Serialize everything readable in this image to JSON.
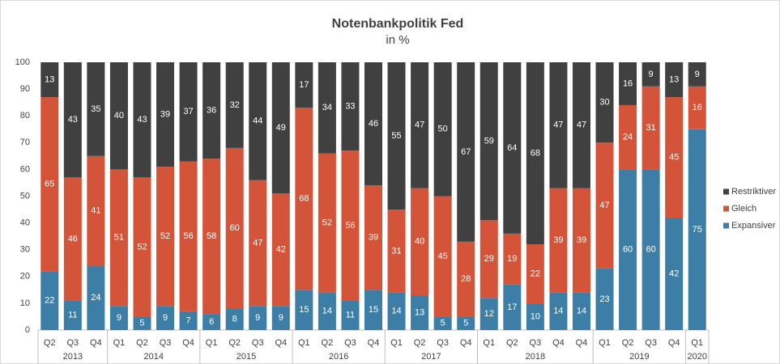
{
  "chart_data": {
    "type": "stacked_bar",
    "title": "Notenbankpolitik Fed",
    "subtitle": "in %",
    "groups": [
      {
        "label": "2013",
        "categories": [
          "Q2",
          "Q3",
          "Q4"
        ]
      },
      {
        "label": "2014",
        "categories": [
          "Q1",
          "Q2",
          "Q3",
          "Q4"
        ]
      },
      {
        "label": "2015",
        "categories": [
          "Q1",
          "Q2",
          "Q3",
          "Q4"
        ]
      },
      {
        "label": "2016",
        "categories": [
          "Q1",
          "Q2",
          "Q3",
          "Q4"
        ]
      },
      {
        "label": "2017",
        "categories": [
          "Q1",
          "Q2",
          "Q3",
          "Q4"
        ]
      },
      {
        "label": "2018",
        "categories": [
          "Q1",
          "Q2",
          "Q3",
          "Q4",
          "Q4"
        ]
      },
      {
        "label": "2019",
        "categories": [
          "Q1",
          "Q2",
          "Q3",
          "Q4"
        ]
      },
      {
        "label": "2020",
        "categories": [
          "Q1"
        ]
      }
    ],
    "series": [
      {
        "name": "Expansiver",
        "color": "#3d7ea6",
        "values": [
          22,
          11,
          24,
          9,
          5,
          9,
          7,
          6,
          8,
          9,
          9,
          15,
          14,
          11,
          15,
          14,
          13,
          5,
          5,
          12,
          17,
          10,
          14,
          14,
          23,
          60,
          60,
          42,
          75
        ]
      },
      {
        "name": "Gleich",
        "color": "#d4543a",
        "values": [
          65,
          46,
          41,
          51,
          52,
          52,
          56,
          58,
          60,
          47,
          42,
          68,
          52,
          56,
          39,
          31,
          40,
          45,
          28,
          29,
          19,
          22,
          39,
          39,
          47,
          24,
          31,
          45,
          16
        ]
      },
      {
        "name": "Restriktiver",
        "color": "#404040",
        "values": [
          13,
          43,
          35,
          40,
          43,
          39,
          37,
          36,
          32,
          44,
          49,
          17,
          34,
          33,
          46,
          55,
          47,
          50,
          67,
          59,
          64,
          68,
          47,
          47,
          30,
          16,
          9,
          13,
          9
        ]
      }
    ],
    "ylim": [
      0,
      100
    ],
    "yticks": [
      0,
      10,
      20,
      30,
      40,
      50,
      60,
      70,
      80,
      90,
      100
    ],
    "grid": false,
    "legend": "right"
  }
}
